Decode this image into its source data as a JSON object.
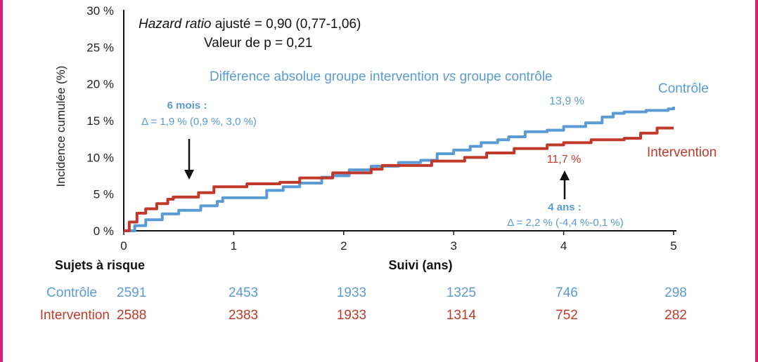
{
  "chart_data": {
    "type": "line",
    "step": true,
    "ylabel": "Incidence cumulée (%)",
    "xlabel": "Suivi (ans)",
    "x_ticks": [
      "0",
      "1",
      "2",
      "3",
      "4",
      "5"
    ],
    "y_ticks": [
      "0 %",
      "5 %",
      "10 %",
      "15 %",
      "20 %",
      "25 %",
      "30 %"
    ],
    "xlim": [
      0,
      5
    ],
    "ylim": [
      0,
      30
    ],
    "grid": false,
    "series": [
      {
        "name": "Contrôle",
        "color": "#5b9bd5",
        "points": [
          [
            0,
            0
          ],
          [
            0.1,
            0.7
          ],
          [
            0.2,
            1.5
          ],
          [
            0.35,
            2.3
          ],
          [
            0.5,
            2.8
          ],
          [
            0.7,
            3.4
          ],
          [
            0.85,
            4.0
          ],
          [
            0.9,
            4.5
          ],
          [
            1.15,
            4.5
          ],
          [
            1.3,
            5.5
          ],
          [
            1.45,
            6.0
          ],
          [
            1.6,
            6.5
          ],
          [
            1.8,
            7.3
          ],
          [
            1.9,
            7.5
          ],
          [
            2.05,
            8.3
          ],
          [
            2.25,
            8.8
          ],
          [
            2.5,
            9.3
          ],
          [
            2.7,
            9.6
          ],
          [
            2.85,
            10.5
          ],
          [
            3.0,
            11.0
          ],
          [
            3.15,
            11.5
          ],
          [
            3.25,
            12.0
          ],
          [
            3.4,
            12.4
          ],
          [
            3.5,
            12.8
          ],
          [
            3.65,
            13.5
          ],
          [
            3.85,
            13.7
          ],
          [
            4.0,
            14.2
          ],
          [
            4.2,
            14.7
          ],
          [
            4.35,
            15.5
          ],
          [
            4.45,
            16.0
          ],
          [
            4.55,
            16.2
          ],
          [
            4.75,
            16.4
          ],
          [
            4.95,
            16.6
          ],
          [
            5.0,
            16.9
          ]
        ]
      },
      {
        "name": "Intervention",
        "color": "#c0392b",
        "points": [
          [
            0,
            0
          ],
          [
            0.05,
            1.2
          ],
          [
            0.12,
            2.4
          ],
          [
            0.2,
            3.0
          ],
          [
            0.3,
            3.7
          ],
          [
            0.4,
            4.3
          ],
          [
            0.45,
            4.6
          ],
          [
            0.65,
            4.6
          ],
          [
            0.68,
            5.2
          ],
          [
            0.8,
            5.2
          ],
          [
            0.82,
            6.0
          ],
          [
            1.1,
            6.0
          ],
          [
            1.12,
            6.4
          ],
          [
            1.4,
            6.4
          ],
          [
            1.42,
            6.6
          ],
          [
            1.55,
            6.6
          ],
          [
            1.6,
            7.2
          ],
          [
            1.85,
            7.2
          ],
          [
            1.9,
            7.9
          ],
          [
            2.2,
            7.9
          ],
          [
            2.25,
            8.4
          ],
          [
            2.35,
            8.9
          ],
          [
            2.75,
            8.9
          ],
          [
            2.8,
            9.5
          ],
          [
            3.05,
            9.5
          ],
          [
            3.1,
            10.0
          ],
          [
            3.3,
            10.6
          ],
          [
            3.55,
            11.2
          ],
          [
            3.85,
            11.7
          ],
          [
            4.0,
            12.0
          ],
          [
            4.25,
            12.4
          ],
          [
            4.55,
            12.6
          ],
          [
            4.7,
            13.3
          ],
          [
            4.85,
            14.0
          ],
          [
            5.0,
            14.0
          ]
        ]
      }
    ]
  },
  "annotations": {
    "hazard_label": "Hazard ratio",
    "hazard_value": " ajusté = 0,90 (0,77-1,06)",
    "p_value": "Valeur de p = 0,21",
    "diff_prefix": "Différence absolue groupe intervention ",
    "diff_vs": "vs",
    "diff_suffix": " groupe contrôle",
    "six_months_title": "6 mois :",
    "six_months_delta": "Δ = 1,9 % (0,9 %, 3,0 %)",
    "four_years_title": "4 ans :",
    "four_years_delta": "Δ = 2,2 % (-4,4 %-0,1 %)",
    "control_label": "Contrôle",
    "intervention_label": "Intervention",
    "control_value": "13,9 %",
    "intervention_value": "11,7 %"
  },
  "risk_table": {
    "title": "Sujets à risque",
    "rows": [
      {
        "label": "Contrôle",
        "color": "#5b9bd5",
        "values": [
          "2591",
          "2453",
          "1933",
          "1325",
          "746",
          "298"
        ]
      },
      {
        "label": "Intervention",
        "color": "#c0392b",
        "values": [
          "2588",
          "2383",
          "1933",
          "1314",
          "752",
          "282"
        ]
      }
    ]
  },
  "colors": {
    "control": "#5b9bd5",
    "intervention": "#c0392b",
    "frame": "#d6207a"
  }
}
